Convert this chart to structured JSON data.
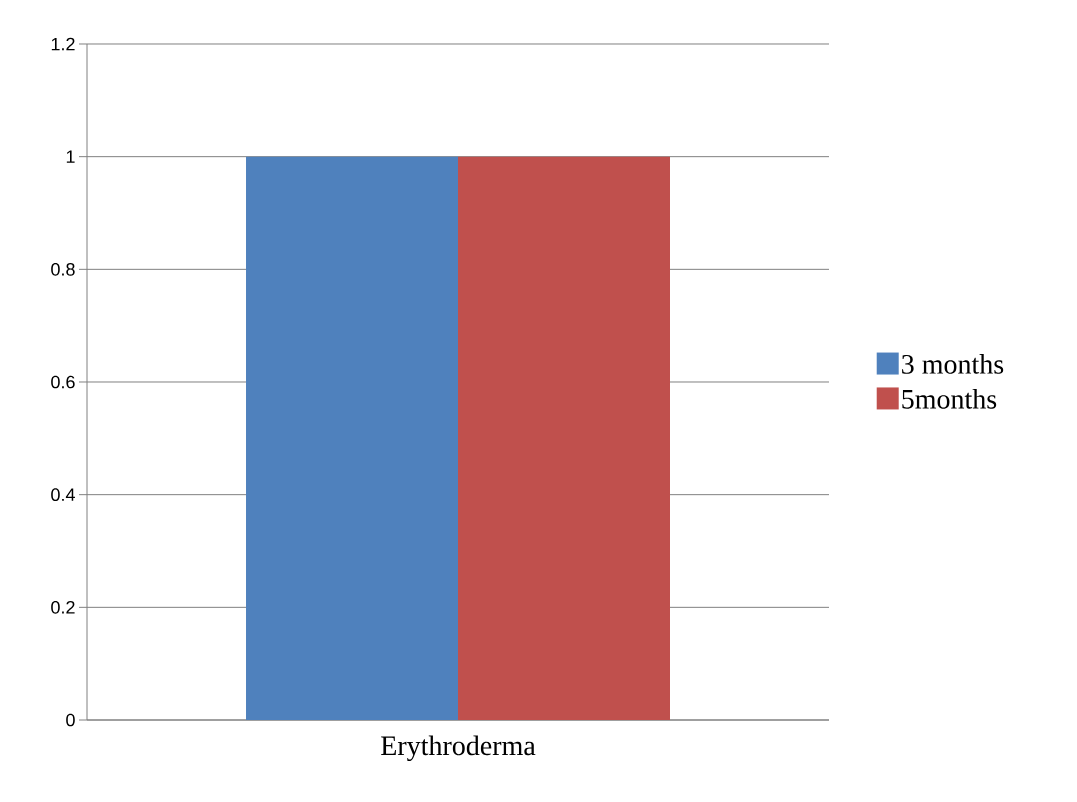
{
  "chart_data": {
    "type": "bar",
    "categories": [
      "Erythroderma"
    ],
    "series": [
      {
        "name": "3 months",
        "color": "#4f81bd",
        "values": [
          1
        ]
      },
      {
        "name": "5months",
        "color": "#c0504d",
        "values": [
          1
        ]
      }
    ],
    "ylim": [
      0,
      1.2
    ],
    "yticks": [
      0,
      0.2,
      0.4,
      0.6,
      0.8,
      1,
      1.2
    ],
    "grid": "y",
    "legend": "right"
  }
}
